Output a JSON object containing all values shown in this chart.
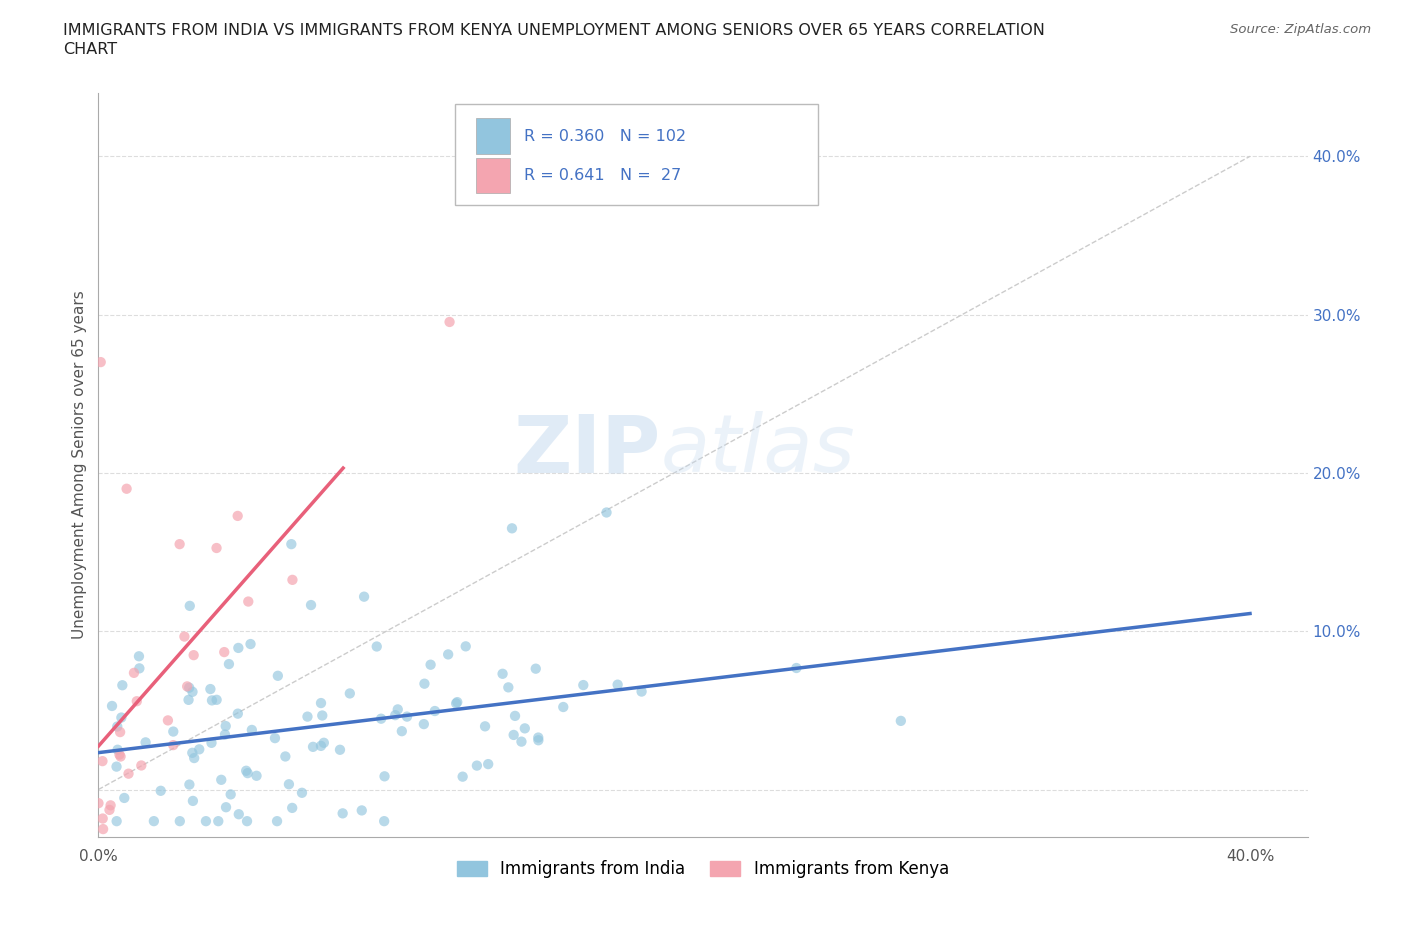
{
  "title_line1": "IMMIGRANTS FROM INDIA VS IMMIGRANTS FROM KENYA UNEMPLOYMENT AMONG SENIORS OVER 65 YEARS CORRELATION",
  "title_line2": "CHART",
  "source": "Source: ZipAtlas.com",
  "ylabel": "Unemployment Among Seniors over 65 years",
  "xlim": [
    0.0,
    0.42
  ],
  "ylim": [
    -0.03,
    0.44
  ],
  "xtick_vals": [
    0.0,
    0.1,
    0.2,
    0.3,
    0.4
  ],
  "ytick_vals": [
    0.0,
    0.1,
    0.2,
    0.3,
    0.4
  ],
  "india_color": "#92C5DE",
  "kenya_color": "#F4A5B0",
  "india_line_color": "#4472C4",
  "kenya_line_color": "#E8607A",
  "india_R": 0.36,
  "india_N": 102,
  "kenya_R": 0.641,
  "kenya_N": 27,
  "watermark_zip": "ZIP",
  "watermark_atlas": "atlas",
  "background_color": "#FFFFFF",
  "grid_color": "#DDDDDD",
  "legend_label_india": "Immigrants from India",
  "legend_label_kenya": "Immigrants from Kenya"
}
